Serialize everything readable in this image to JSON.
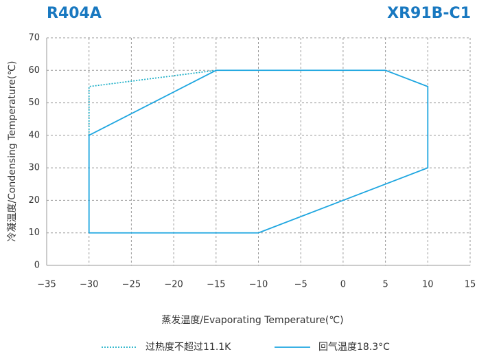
{
  "chart_data": {
    "type": "line",
    "title": "R404A",
    "subtitle": "XR91B-C1",
    "x_label": "蒸发温度/Evaporating Temperature(℃)",
    "y_label": "冷凝温度/Condensing Temperature(℃)",
    "xlim": [
      -35,
      15
    ],
    "xticks": [
      {
        "value": -35,
        "label": "−35"
      },
      {
        "value": -30,
        "label": "−30"
      },
      {
        "value": -25,
        "label": "−25"
      },
      {
        "value": -20,
        "label": "−20"
      },
      {
        "value": -15,
        "label": "−15"
      },
      {
        "value": -10,
        "label": "−10"
      },
      {
        "value": -5,
        "label": "−5"
      },
      0,
      5,
      10,
      15
    ],
    "ylim": [
      0,
      70
    ],
    "yticks": [
      0,
      10,
      20,
      30,
      40,
      50,
      60,
      70
    ],
    "grid": true,
    "series": [
      {
        "name": "过热度不超过11.1K",
        "color": "#1fb0c8",
        "style": "dotted",
        "x": [
          -30,
          -30,
          -15
        ],
        "values": [
          40,
          55,
          60
        ]
      },
      {
        "name": "回气温度18.3°C",
        "color": "#1ea6e0",
        "style": "solid",
        "x": [
          -30,
          -10,
          10,
          10,
          5,
          -15,
          -30,
          -30
        ],
        "values": [
          10,
          10,
          30,
          55,
          60,
          60,
          40,
          10
        ]
      }
    ]
  }
}
